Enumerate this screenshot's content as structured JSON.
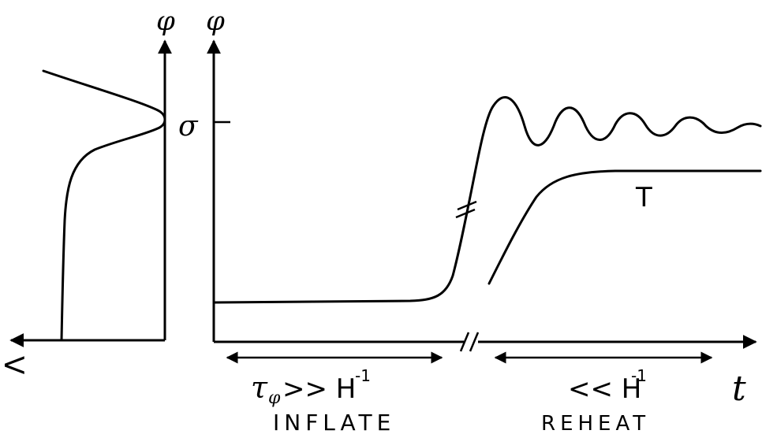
{
  "left_panel": {
    "y_axis_label": "φ",
    "x_axis_label": "V",
    "level_label": "σ"
  },
  "right_panel": {
    "y_axis_label": "φ",
    "x_axis_label": "t",
    "temperature_label": "T"
  },
  "intervals": {
    "inflate_duration": "τφ >> H⁻¹",
    "inflate_duration_main": "τ",
    "inflate_duration_sub": "φ",
    "inflate_duration_rest": ">> H",
    "inflate_duration_sup": "-1",
    "inflate_label": "INFLATE",
    "reheat_duration_main": "<< H",
    "reheat_duration_sup": "-1",
    "reheat_label": "REHEAT"
  }
}
